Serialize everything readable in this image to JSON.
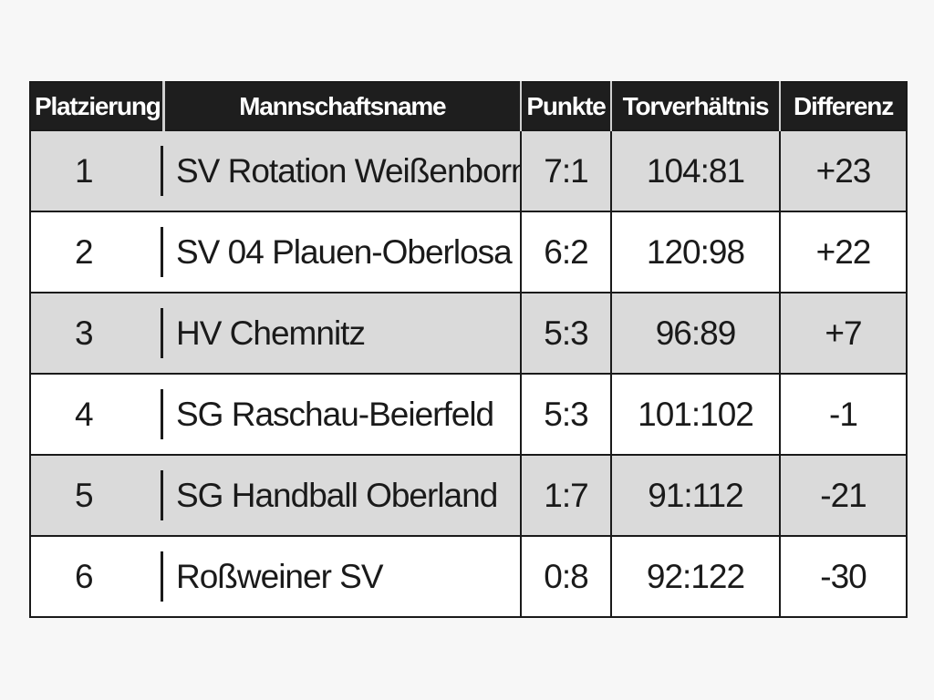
{
  "table": {
    "headers": {
      "place": "Platzierung",
      "name": "Mannschaftsname",
      "points": "Punkte",
      "goals": "Torverhältnis",
      "difference": "Differenz"
    },
    "rows": [
      {
        "place": "1",
        "name": "SV Rotation Weißenborn",
        "points": "7:1",
        "goals": "104:81",
        "difference": "+23"
      },
      {
        "place": "2",
        "name": "SV 04 Plauen-Oberlosa",
        "points": "6:2",
        "goals": "120:98",
        "difference": "+22"
      },
      {
        "place": "3",
        "name": "HV Chemnitz",
        "points": "5:3",
        "goals": "96:89",
        "difference": "+7"
      },
      {
        "place": "4",
        "name": "SG Raschau-Beierfeld",
        "points": "5:3",
        "goals": "101:102",
        "difference": "-1"
      },
      {
        "place": "5",
        "name": "SG Handball Oberland",
        "points": "1:7",
        "goals": "91:112",
        "difference": "-21"
      },
      {
        "place": "6",
        "name": "Roßweiner SV",
        "points": "0:8",
        "goals": "92:122",
        "difference": "-30"
      }
    ]
  },
  "colors": {
    "header_bg": "#1e1e1e",
    "row_alt_bg": "#dadada",
    "row_bg": "#ffffff",
    "text": "#1a1a1a"
  }
}
